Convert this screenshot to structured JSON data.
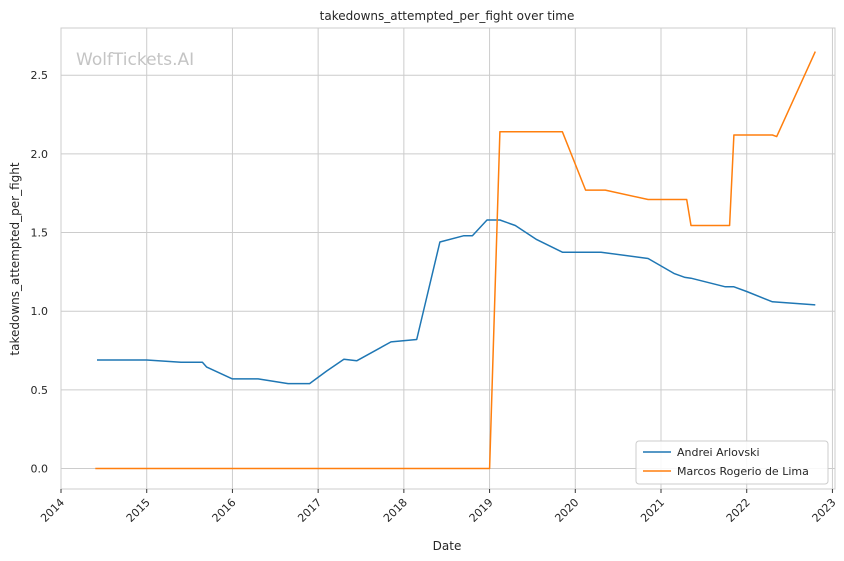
{
  "chart_data": {
    "type": "line",
    "title": "takedowns_attempted_per_fight over time",
    "xlabel": "Date",
    "ylabel": "takedowns_attempted_per_fight",
    "watermark": "WolfTickets.AI",
    "xlim": [
      2014.0,
      2023.03
    ],
    "ylim": [
      -0.13,
      2.8
    ],
    "x_ticks": [
      2014,
      2015,
      2016,
      2017,
      2018,
      2019,
      2020,
      2021,
      2022,
      2023
    ],
    "x_tick_labels": [
      "2014",
      "2015",
      "2016",
      "2017",
      "2018",
      "2019",
      "2020",
      "2021",
      "2022",
      "2023"
    ],
    "y_ticks": [
      0.0,
      0.5,
      1.0,
      1.5,
      2.0,
      2.5
    ],
    "y_tick_labels": [
      "0.0",
      "0.5",
      "1.0",
      "1.5",
      "2.0",
      "2.5"
    ],
    "grid": true,
    "legend_position": "bottom-right",
    "series": [
      {
        "name": "Andrei Arlovski",
        "color": "#1f77b4",
        "x": [
          2014.42,
          2015.0,
          2015.4,
          2015.65,
          2015.7,
          2016.0,
          2016.3,
          2016.65,
          2016.9,
          2017.1,
          2017.3,
          2017.45,
          2017.85,
          2018.15,
          2018.42,
          2018.7,
          2018.8,
          2018.97,
          2019.12,
          2019.3,
          2019.55,
          2019.85,
          2020.3,
          2020.85,
          2021.15,
          2021.28,
          2021.35,
          2021.75,
          2021.85,
          2022.0,
          2022.3,
          2022.8
        ],
        "y": [
          0.69,
          0.69,
          0.675,
          0.675,
          0.645,
          0.57,
          0.57,
          0.54,
          0.54,
          0.62,
          0.695,
          0.685,
          0.805,
          0.82,
          1.44,
          1.48,
          1.48,
          1.58,
          1.58,
          1.545,
          1.455,
          1.375,
          1.375,
          1.335,
          1.24,
          1.215,
          1.21,
          1.155,
          1.155,
          1.125,
          1.06,
          1.04
        ]
      },
      {
        "name": "Marcos Rogerio de Lima",
        "color": "#ff7f0e",
        "x": [
          2014.4,
          2019.0,
          2019.12,
          2019.85,
          2020.12,
          2020.35,
          2020.85,
          2021.3,
          2021.35,
          2021.8,
          2021.85,
          2022.3,
          2022.35,
          2022.8
        ],
        "y": [
          0.0,
          0.0,
          2.14,
          2.14,
          1.77,
          1.77,
          1.71,
          1.71,
          1.545,
          1.545,
          2.12,
          2.12,
          2.11,
          2.65
        ]
      }
    ]
  }
}
